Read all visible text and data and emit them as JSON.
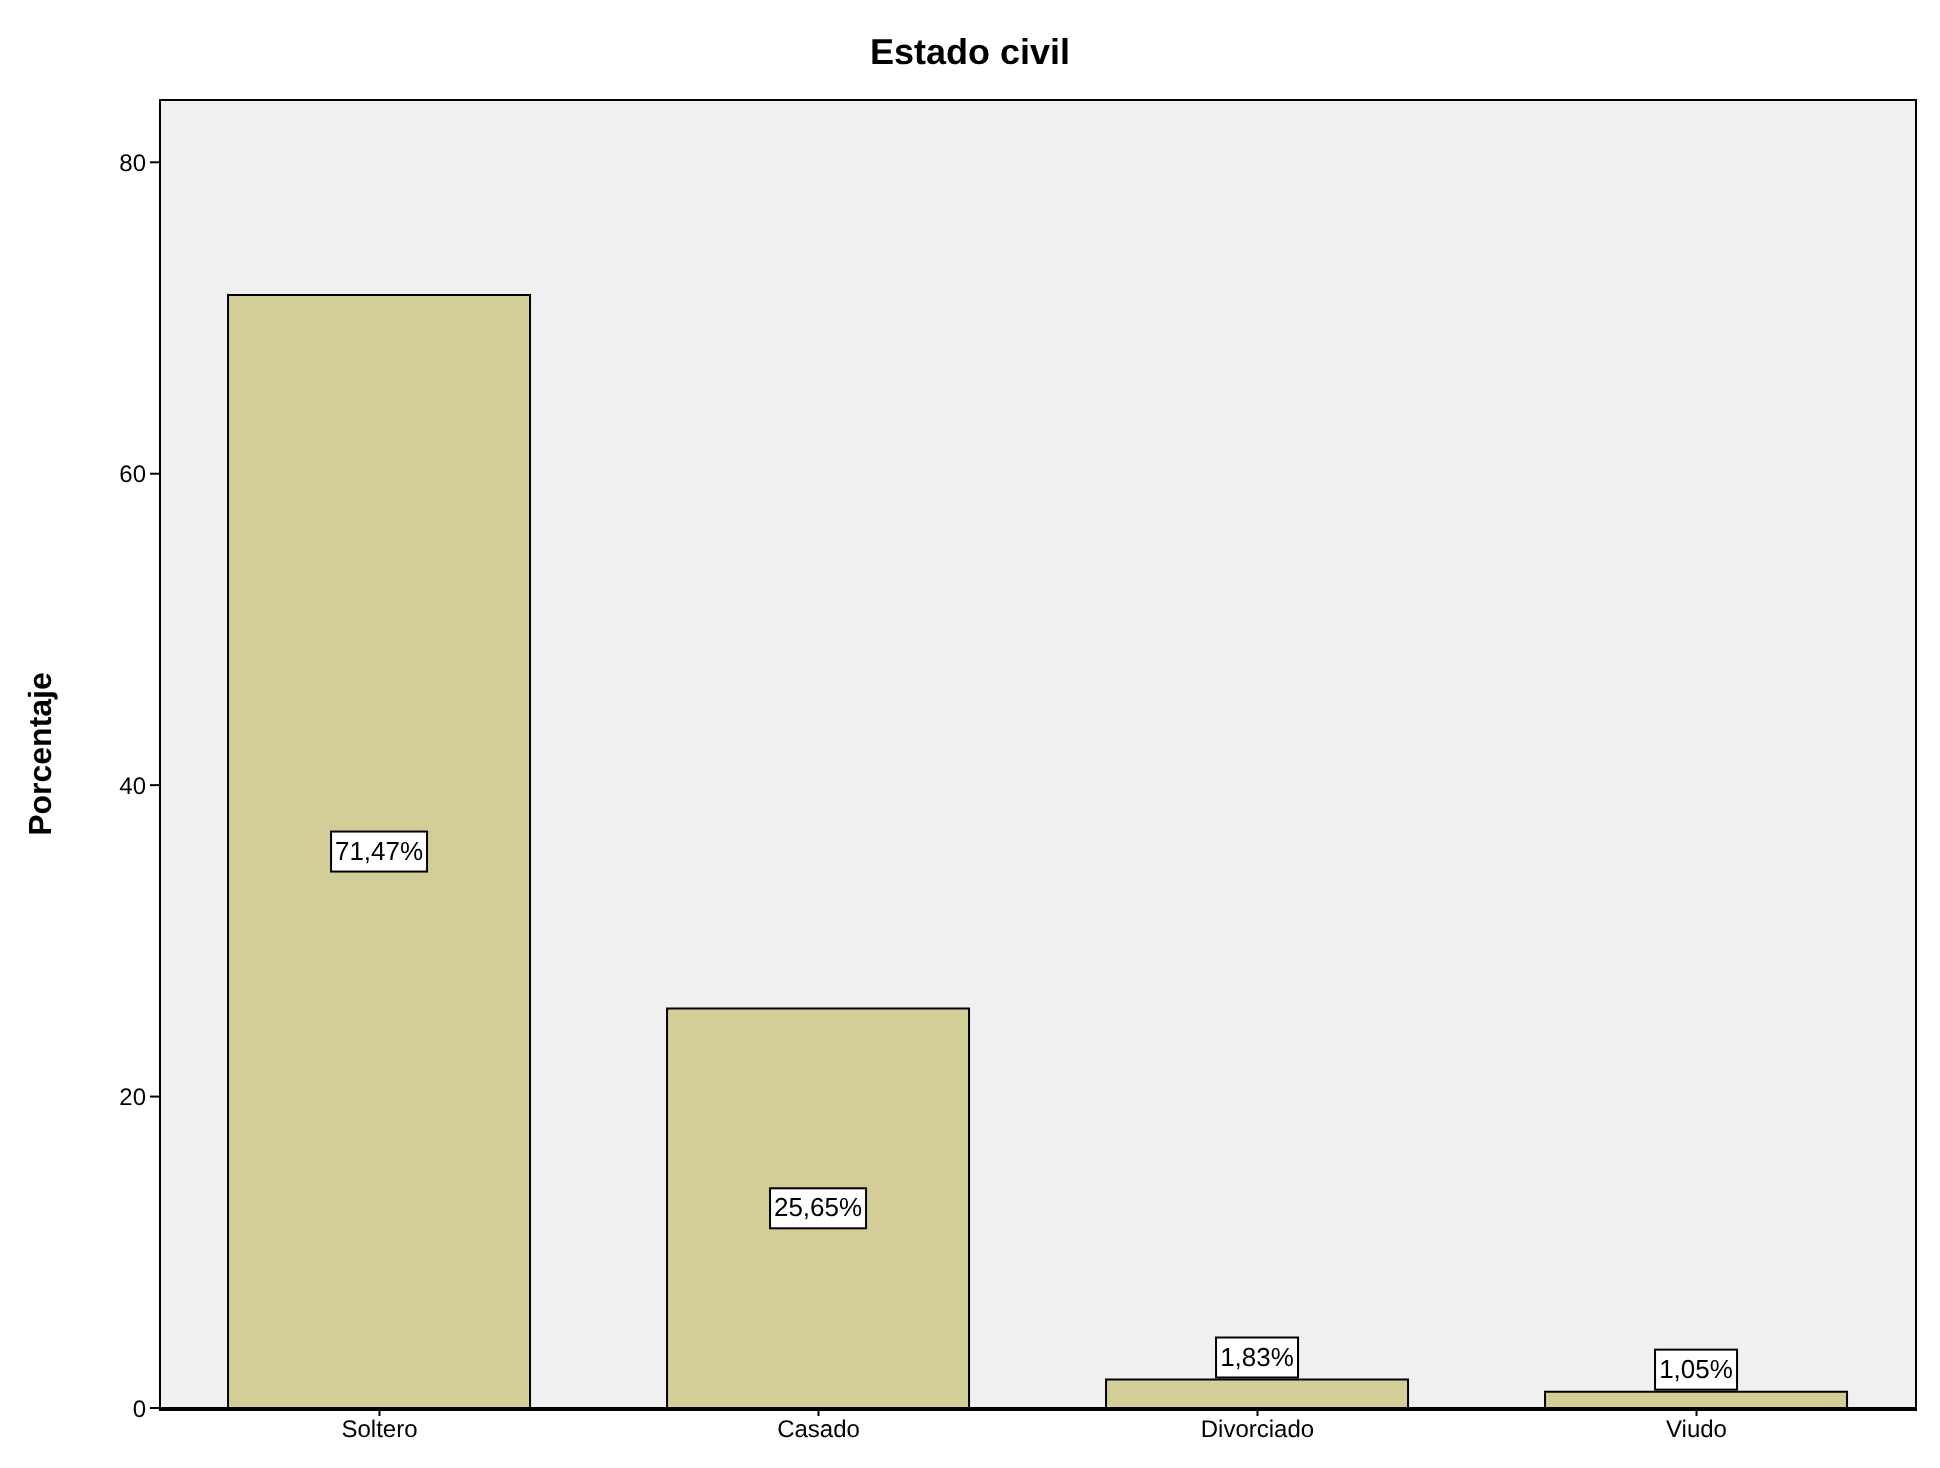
{
  "chart_data": {
    "type": "bar",
    "title": "Estado civil",
    "ylabel": "Porcentaje",
    "categories": [
      "Soltero",
      "Casado",
      "Divorciado",
      "Viudo"
    ],
    "values": [
      71.47,
      25.65,
      1.83,
      1.05
    ],
    "value_labels": [
      "71,47%",
      "25,65%",
      "1,83%",
      "1,05%"
    ],
    "color": "#d3cd98",
    "ylim": [
      0,
      84
    ],
    "yticks": [
      0,
      20,
      40,
      60,
      80
    ]
  }
}
